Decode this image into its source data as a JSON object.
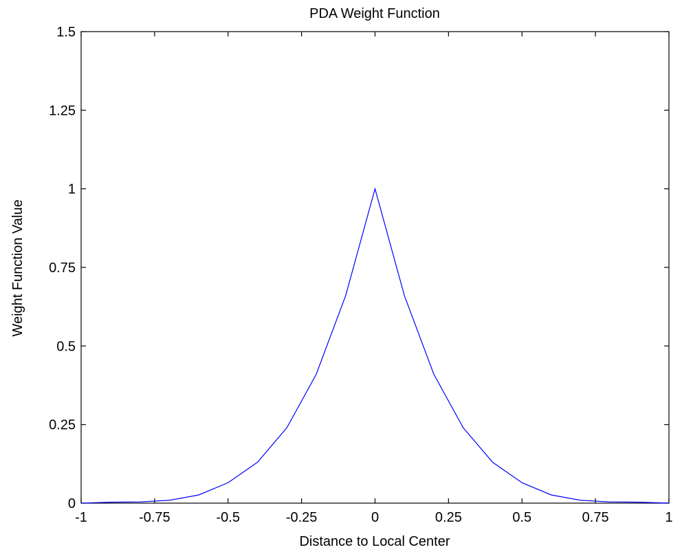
{
  "chart_data": {
    "type": "line",
    "title": "PDA Weight Function",
    "xlabel": "Distance to Local Center",
    "ylabel": "Weight Function Value",
    "xlim": [
      -1,
      1
    ],
    "ylim": [
      0,
      1.5
    ],
    "xticks": [
      -1,
      -0.75,
      -0.5,
      -0.25,
      0,
      0.25,
      0.5,
      0.75,
      1
    ],
    "xtick_labels": [
      "-1",
      "-0.75",
      "-0.5",
      "-0.25",
      "0",
      "0.25",
      "0.5",
      "0.75",
      "1"
    ],
    "yticks": [
      0,
      0.25,
      0.5,
      0.75,
      1,
      1.25,
      1.5
    ],
    "ytick_labels": [
      "0",
      "0.25",
      "0.5",
      "0.75",
      "1",
      "1.25",
      "1.5"
    ],
    "grid": false,
    "series": [
      {
        "color": "#0000ff",
        "x": [
          -1,
          -0.9,
          -0.8,
          -0.7,
          -0.6,
          -0.5,
          -0.4,
          -0.3,
          -0.2,
          -0.1,
          0,
          0.1,
          0.2,
          0.3,
          0.4,
          0.5,
          0.6,
          0.7,
          0.8,
          0.9,
          1
        ],
        "y": [
          0,
          0.003,
          0.004,
          0.009,
          0.026,
          0.065,
          0.13,
          0.24,
          0.41,
          0.66,
          1,
          0.66,
          0.41,
          0.24,
          0.13,
          0.065,
          0.026,
          0.009,
          0.004,
          0.003,
          0
        ]
      }
    ]
  }
}
